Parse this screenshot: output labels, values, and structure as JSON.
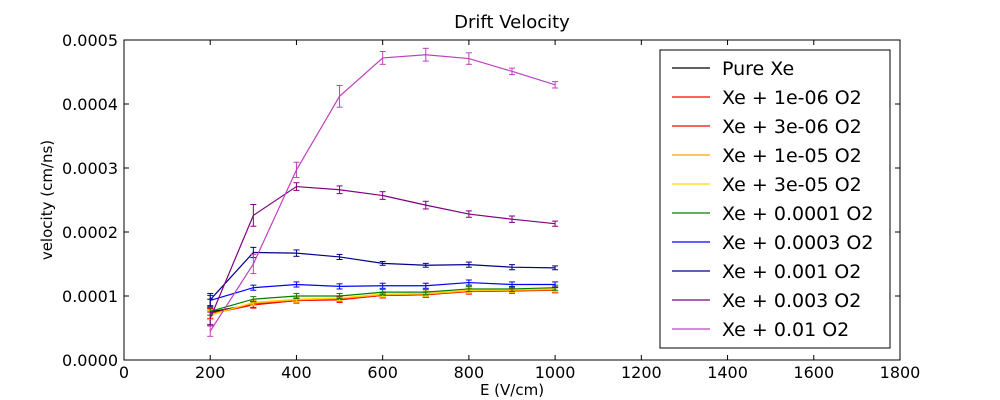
{
  "chart_data": {
    "type": "line",
    "title": "Drift Velocity",
    "xlabel": "E (V/cm)",
    "ylabel": "velocity (cm/ns)",
    "xlim": [
      0,
      1800
    ],
    "ylim": [
      0,
      0.0005
    ],
    "xticks": [
      "0",
      "200",
      "400",
      "600",
      "800",
      "1000",
      "1200",
      "1400",
      "1600",
      "1800"
    ],
    "yticks": [
      "0.0000",
      "0.0001",
      "0.0002",
      "0.0003",
      "0.0004",
      "0.0005"
    ],
    "grid": false,
    "legend_position": "top-right",
    "x": [
      200,
      300,
      400,
      500,
      600,
      700,
      800,
      900,
      1000
    ],
    "series": [
      {
        "name": "Pure Xe",
        "color": "#000000",
        "values": [
          7.5e-05,
          8.7e-05,
          9.3e-05,
          9.5e-05,
          0.000101,
          0.000102,
          0.000108,
          0.000108,
          0.00011
        ],
        "errors": [
          2e-05,
          5e-06,
          4e-06,
          4e-06,
          4e-06,
          4e-06,
          4e-06,
          4e-06,
          4e-06
        ]
      },
      {
        "name": "Xe + 1e-06 O2",
        "color": "#ff0000",
        "values": [
          7.2e-05,
          8.6e-05,
          9.3e-05,
          9.4e-05,
          0.000101,
          0.000102,
          0.000107,
          0.000108,
          0.000109
        ],
        "errors": [
          8e-06,
          5e-06,
          4e-06,
          4e-06,
          4e-06,
          4e-06,
          4e-06,
          4e-06,
          4e-06
        ]
      },
      {
        "name": "Xe + 3e-06 O2",
        "color": "#ff0000",
        "values": [
          7.3e-05,
          8.7e-05,
          9.3e-05,
          9.5e-05,
          0.000101,
          0.000103,
          0.000107,
          0.000108,
          0.00011
        ],
        "errors": [
          8e-06,
          5e-06,
          4e-06,
          4e-06,
          4e-06,
          4e-06,
          4e-06,
          4e-06,
          4e-06
        ]
      },
      {
        "name": "Xe + 1e-05 O2",
        "color": "#ffa500",
        "values": [
          7.1e-05,
          8.9e-05,
          9.4e-05,
          9.6e-05,
          0.000102,
          0.000103,
          0.000108,
          0.000109,
          0.00011
        ],
        "errors": [
          7e-06,
          4e-06,
          4e-06,
          4e-06,
          4e-06,
          4e-06,
          4e-06,
          4e-06,
          4e-06
        ]
      },
      {
        "name": "Xe + 3e-05 O2",
        "color": "#ffd700",
        "values": [
          7e-05,
          9e-05,
          9.5e-05,
          9.7e-05,
          0.000103,
          0.000104,
          0.000109,
          0.00011,
          0.000111
        ],
        "errors": [
          7e-06,
          4e-06,
          4e-06,
          4e-06,
          4e-06,
          4e-06,
          4e-06,
          4e-06,
          4e-06
        ]
      },
      {
        "name": "Xe + 0.0001 O2",
        "color": "#008000",
        "values": [
          7.6e-05,
          9.5e-05,
          0.0001,
          0.0001,
          0.000106,
          0.000106,
          0.000111,
          0.000111,
          0.000113
        ],
        "errors": [
          6e-06,
          4e-06,
          4e-06,
          4e-06,
          4e-06,
          4e-06,
          4e-06,
          4e-06,
          4e-06
        ]
      },
      {
        "name": "Xe + 0.0003 O2",
        "color": "#0000ff",
        "values": [
          9.3e-05,
          0.000113,
          0.000118,
          0.000115,
          0.000116,
          0.000116,
          0.000121,
          0.000118,
          0.000118
        ],
        "errors": [
          8e-06,
          4e-06,
          4e-06,
          4e-06,
          4e-06,
          4e-06,
          4e-06,
          4e-06,
          4e-06
        ]
      },
      {
        "name": "Xe + 0.001 O2",
        "color": "#00008b",
        "values": [
          9.4e-05,
          0.000168,
          0.000167,
          0.000161,
          0.000151,
          0.000148,
          0.000149,
          0.000145,
          0.000144
        ],
        "errors": [
          1e-05,
          8e-06,
          5e-06,
          4e-06,
          3e-06,
          3e-06,
          4e-06,
          4e-06,
          3e-06
        ]
      },
      {
        "name": "Xe + 0.003 O2",
        "color": "#800080",
        "values": [
          6.5e-05,
          0.000226,
          0.000271,
          0.000266,
          0.000257,
          0.000242,
          0.000228,
          0.00022,
          0.000213
        ],
        "errors": [
          1e-05,
          1.7e-05,
          6e-06,
          6e-06,
          6e-06,
          6e-06,
          5e-06,
          5e-06,
          4e-06
        ]
      },
      {
        "name": "Xe + 0.01 O2",
        "color": "#bf40bf",
        "values": [
          4.5e-05,
          0.00015,
          0.000297,
          0.000412,
          0.000472,
          0.000477,
          0.000471,
          0.000451,
          0.00043
        ],
        "errors": [
          8e-06,
          1.5e-05,
          1.2e-05,
          1.7e-05,
          1e-05,
          1e-05,
          9e-06,
          5e-06,
          5e-06
        ]
      }
    ]
  }
}
